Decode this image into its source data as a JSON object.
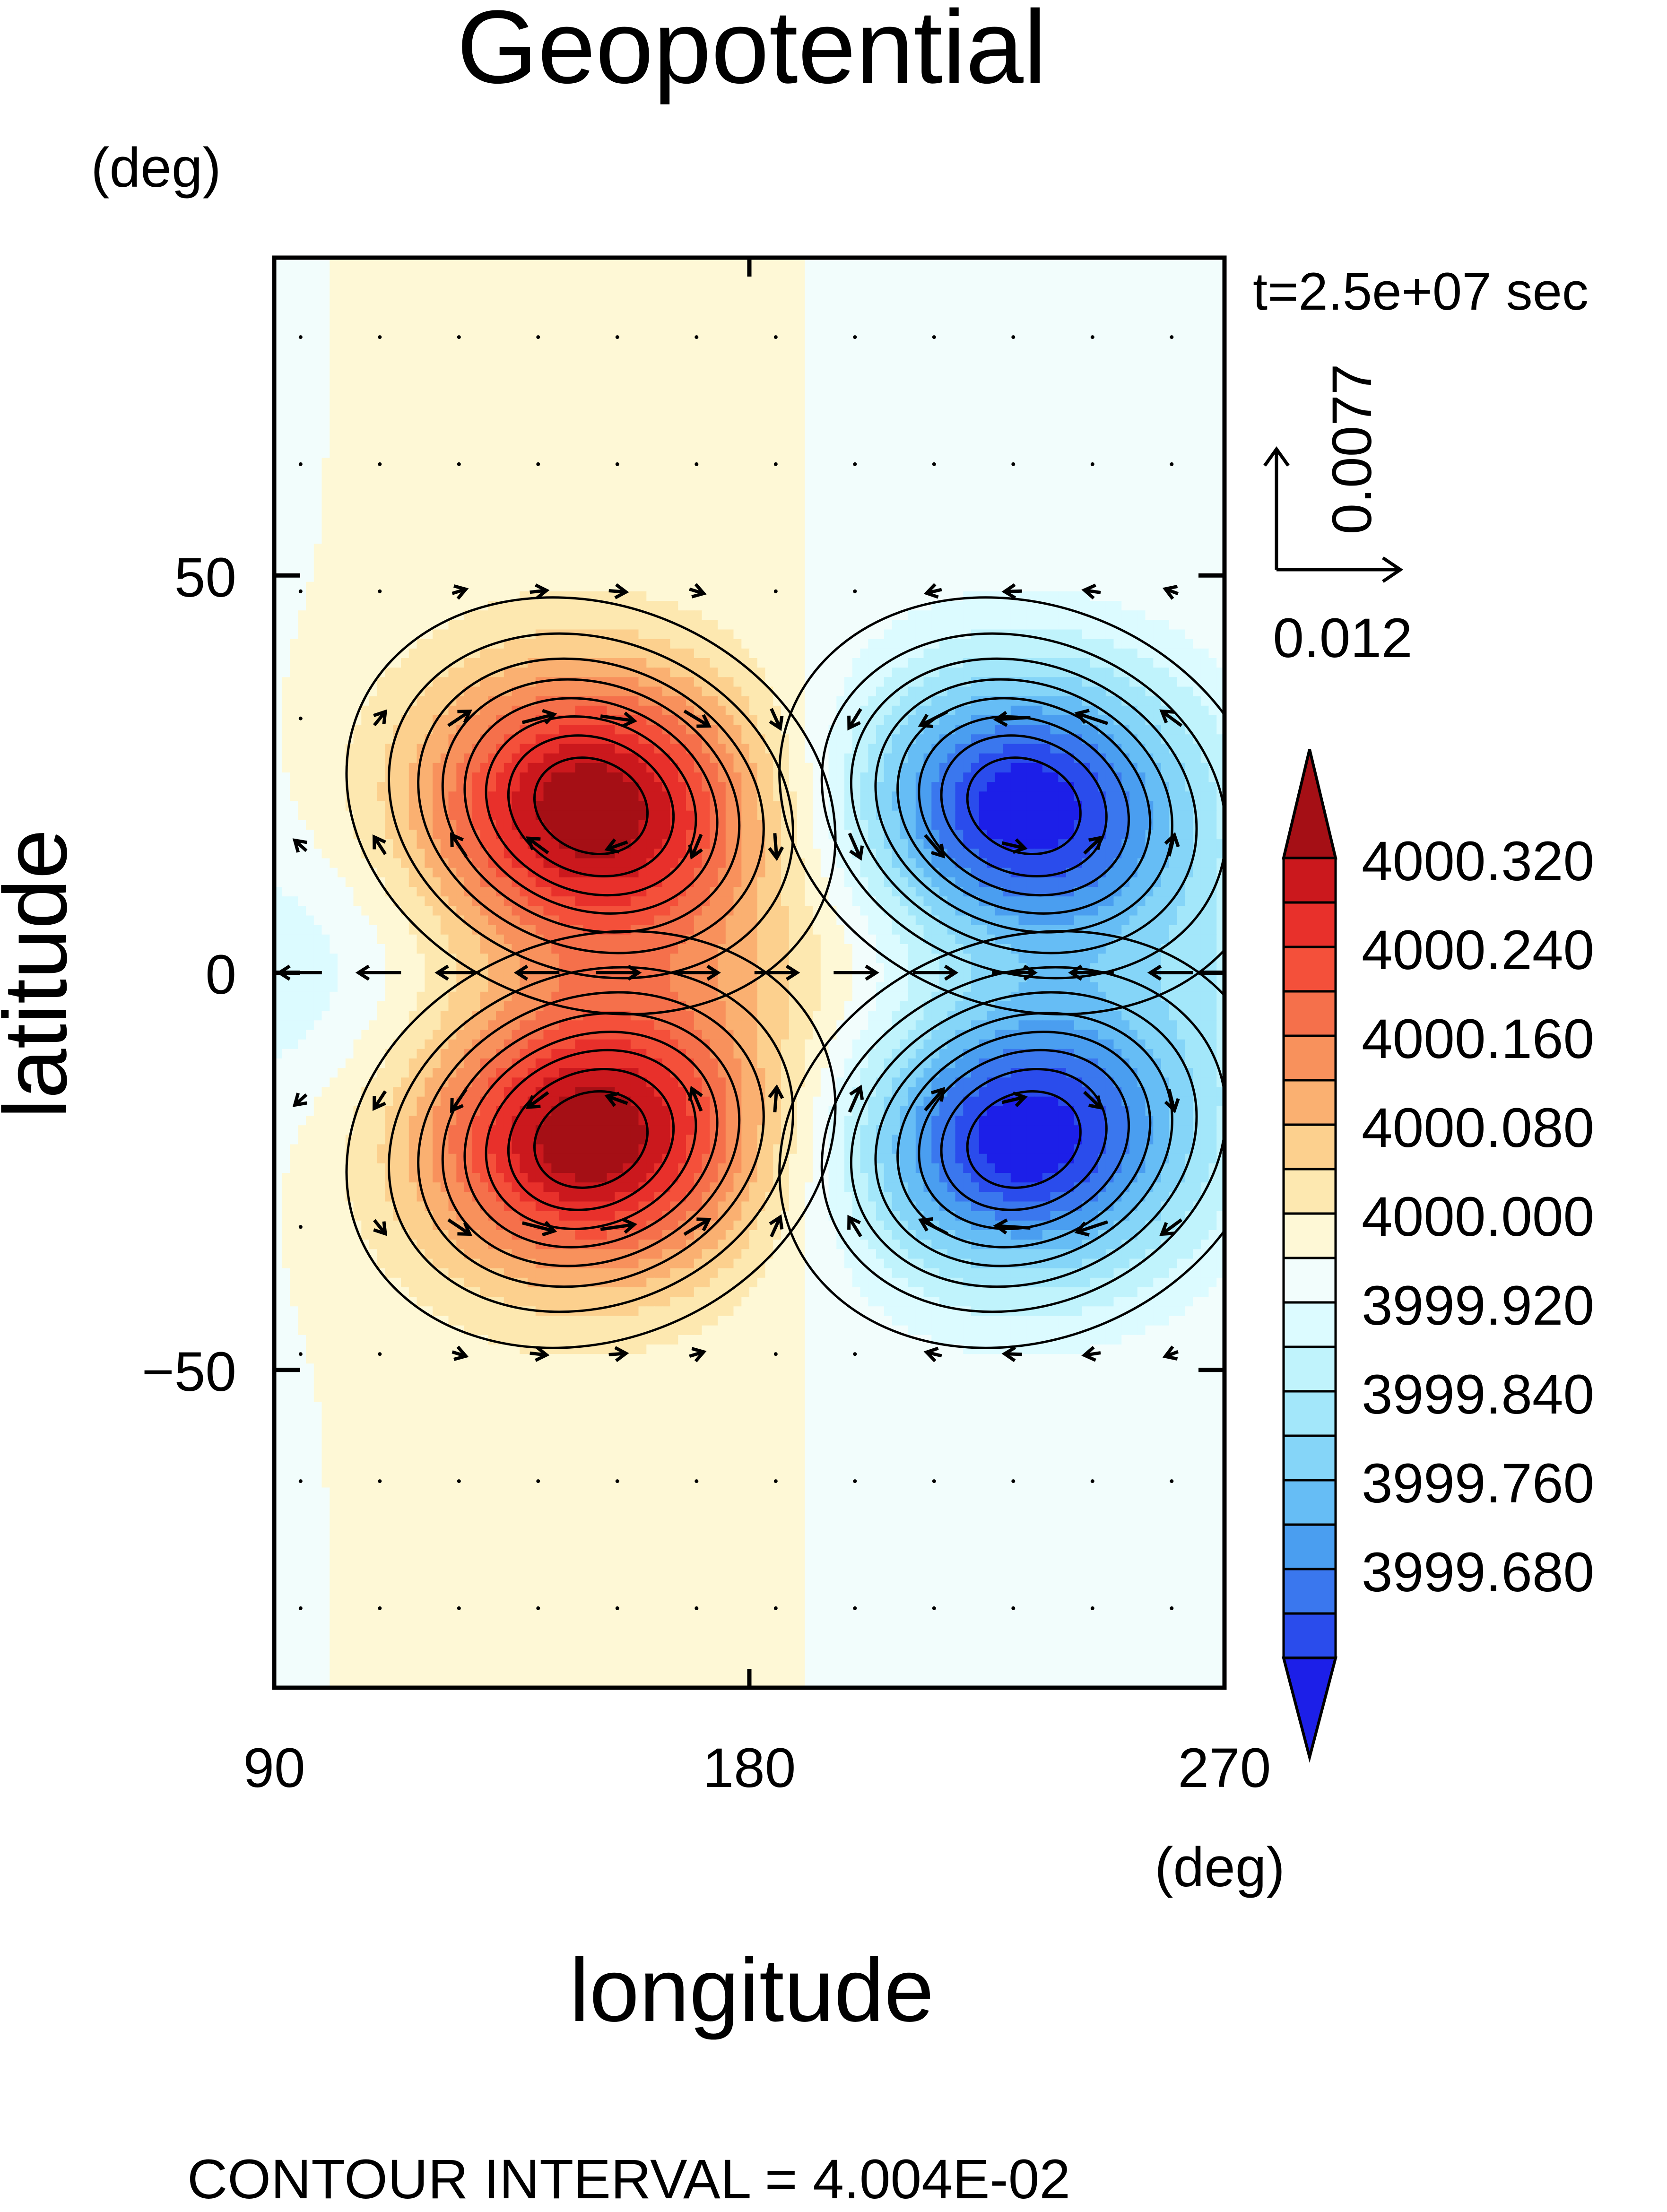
{
  "chart_data": {
    "type": "contour",
    "title": "Geopotential",
    "xlabel": "longitude",
    "ylabel": "latitude",
    "x_unit": "(deg)",
    "y_unit": "(deg)",
    "xlim": [
      90,
      270
    ],
    "ylim": [
      -90,
      90
    ],
    "xticks": [
      90,
      180,
      270
    ],
    "yticks": [
      50,
      0,
      -50
    ],
    "ytick_labels": [
      "50",
      "0",
      "−50"
    ],
    "time_label": "t=2.5e+07 sec",
    "vector_reference": {
      "u": "0.012",
      "v": "0.0077"
    },
    "footer": "CONTOUR INTERVAL = 4.004E-02",
    "contour_interval": 0.04004,
    "base_value": 4000.0,
    "colorbar": {
      "labels": [
        "4000.320",
        "4000.240",
        "4000.160",
        "4000.080",
        "4000.000",
        "3999.920",
        "3999.840",
        "3999.760",
        "3999.680"
      ],
      "levels": [
        4000.36,
        4000.32,
        4000.28,
        4000.24,
        4000.2,
        4000.16,
        4000.12,
        4000.08,
        4000.04,
        4000.0,
        3999.96,
        3999.92,
        3999.88,
        3999.84,
        3999.8,
        3999.76,
        3999.72,
        3999.68,
        3999.64
      ],
      "colors": [
        "#a50f15",
        "#cb181d",
        "#e8302b",
        "#f4503a",
        "#f5704b",
        "#f8915c",
        "#fab071",
        "#fcd08e",
        "#fde8b0",
        "#fef8d6",
        "#f2fdfc",
        "#dcfbff",
        "#c0f3fc",
        "#a3e7fa",
        "#85d5f8",
        "#66bdf5",
        "#4a9ef0",
        "#3a77ee",
        "#2a4cec",
        "#1c1fe8"
      ]
    },
    "features": [
      {
        "kind": "high",
        "lon": 150,
        "lat": 21,
        "value": 4000.36
      },
      {
        "kind": "high",
        "lon": 150,
        "lat": -21,
        "value": 4000.36
      },
      {
        "kind": "low",
        "lon": 232,
        "lat": 21,
        "value": 3999.64
      },
      {
        "kind": "low",
        "lon": 232,
        "lat": -21,
        "value": 3999.64
      }
    ]
  }
}
